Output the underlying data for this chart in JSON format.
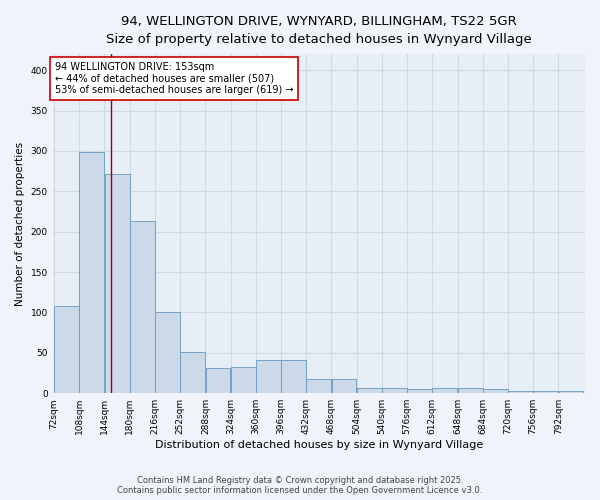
{
  "title_line1": "94, WELLINGTON DRIVE, WYNYARD, BILLINGHAM, TS22 5GR",
  "title_line2": "Size of property relative to detached houses in Wynyard Village",
  "xlabel": "Distribution of detached houses by size in Wynyard Village",
  "ylabel": "Number of detached properties",
  "bar_color": "#ccd9e8",
  "bar_edge_color": "#6699bb",
  "background_color": "#e8eef6",
  "grid_color": "#d0d8e8",
  "fig_bg_color": "#f0f4fa",
  "bins": [
    72,
    108,
    144,
    180,
    216,
    252,
    288,
    324,
    360,
    396,
    432,
    468,
    504,
    540,
    576,
    612,
    648,
    684,
    720,
    756,
    792
  ],
  "counts": [
    108,
    299,
    271,
    213,
    101,
    51,
    31,
    33,
    41,
    41,
    18,
    18,
    6,
    6,
    5,
    7,
    7,
    5,
    3,
    3,
    3
  ],
  "marker_value": 153,
  "marker_color": "#990000",
  "annotation_line1": "94 WELLINGTON DRIVE: 153sqm",
  "annotation_line2": "← 44% of detached houses are smaller (507)",
  "annotation_line3": "53% of semi-detached houses are larger (619) →",
  "annotation_box_color": "#ffffff",
  "annotation_border_color": "#cc0000",
  "ylim": [
    0,
    420
  ],
  "yticks": [
    0,
    50,
    100,
    150,
    200,
    250,
    300,
    350,
    400
  ],
  "footer_line1": "Contains HM Land Registry data © Crown copyright and database right 2025.",
  "footer_line2": "Contains public sector information licensed under the Open Government Licence v3.0.",
  "title_fontsize": 9.5,
  "subtitle_fontsize": 8.5,
  "axis_label_fontsize": 7.5,
  "tick_fontsize": 6.5,
  "annotation_fontsize": 7,
  "footer_fontsize": 6
}
